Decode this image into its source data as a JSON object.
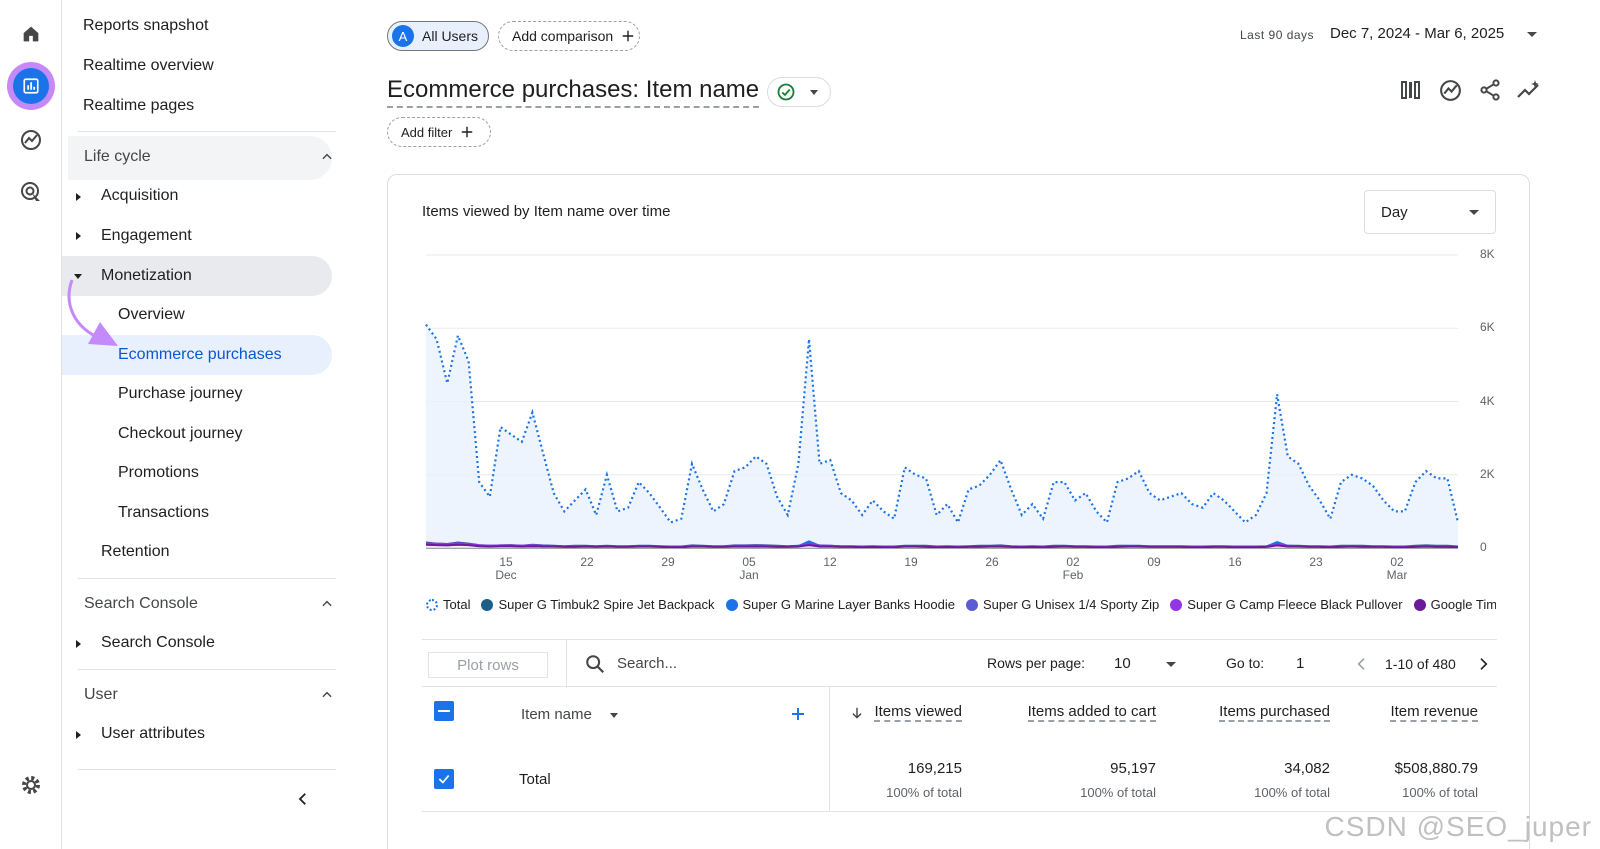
{
  "rail": {
    "icons": [
      "home-icon",
      "reports-icon",
      "explore-icon",
      "advertising-icon",
      "settings-icon"
    ]
  },
  "nav": {
    "top_items": [
      "Reports snapshot",
      "Realtime overview",
      "Realtime pages"
    ],
    "lifecycle": {
      "header": "Life cycle",
      "items": [
        "Acquisition",
        "Engagement",
        "Monetization"
      ],
      "monetization_children": [
        "Overview",
        "Ecommerce purchases",
        "Purchase journey",
        "Checkout journey",
        "Promotions",
        "Transactions"
      ],
      "retention": "Retention"
    },
    "search_console": {
      "header": "Search Console",
      "item": "Search Console"
    },
    "user": {
      "header": "User",
      "item": "User attributes"
    }
  },
  "header": {
    "segment_avatar": "A",
    "segment_label": "All Users",
    "add_comparison": "Add comparison",
    "date_range_label": "Last 90 days",
    "date_range": "Dec 7, 2024 - Mar 6, 2025",
    "title": "Ecommerce purchases: Item name",
    "add_filter": "Add filter"
  },
  "chart_card": {
    "title": "Items viewed by Item name over time",
    "granularity": "Day"
  },
  "chart_data": {
    "type": "line",
    "y_ticks": [
      "8K",
      "6K",
      "4K",
      "2K",
      "0"
    ],
    "ylim": [
      0,
      8000
    ],
    "x_ticks": [
      {
        "day": "15",
        "month": "Dec"
      },
      {
        "day": "22",
        "month": ""
      },
      {
        "day": "29",
        "month": ""
      },
      {
        "day": "05",
        "month": "Jan"
      },
      {
        "day": "12",
        "month": ""
      },
      {
        "day": "19",
        "month": ""
      },
      {
        "day": "26",
        "month": ""
      },
      {
        "day": "02",
        "month": "Feb"
      },
      {
        "day": "09",
        "month": ""
      },
      {
        "day": "16",
        "month": ""
      },
      {
        "day": "23",
        "month": ""
      },
      {
        "day": "02",
        "month": "Mar"
      }
    ],
    "series": [
      {
        "name": "Total",
        "color": "#1a73e8",
        "style": "dotted-area",
        "values": [
          6100,
          5700,
          4500,
          5800,
          5100,
          1800,
          1400,
          3300,
          3100,
          2900,
          3700,
          2600,
          1500,
          1000,
          1300,
          1600,
          900,
          2000,
          1000,
          1100,
          1800,
          1500,
          1100,
          700,
          800,
          2300,
          1600,
          1000,
          1200,
          2100,
          2200,
          2500,
          2300,
          1400,
          900,
          2300,
          5700,
          2300,
          2400,
          1500,
          1300,
          900,
          1300,
          1000,
          800,
          2200,
          2000,
          1900,
          900,
          1200,
          700,
          1600,
          1700,
          2000,
          2400,
          1600,
          900,
          1200,
          800,
          1800,
          1800,
          1300,
          1500,
          1000,
          700,
          1800,
          1900,
          2100,
          1500,
          1300,
          1400,
          1500,
          1200,
          1100,
          1500,
          1300,
          1000,
          700,
          900,
          1500,
          4200,
          2500,
          2300,
          1700,
          1300,
          800,
          1800,
          2000,
          1900,
          1700,
          1300,
          1000,
          1000,
          1800,
          2100,
          1900,
          1900,
          700
        ]
      },
      {
        "name": "Super G Timbuk2 Spire Jet Backpack",
        "color": "#1b5e8a",
        "values": [
          150,
          120,
          110,
          150,
          120,
          80,
          60,
          70,
          80,
          60,
          90,
          70,
          60,
          50,
          60,
          60,
          50,
          60,
          50,
          50,
          60,
          60,
          50,
          40,
          40,
          70,
          60,
          50,
          50,
          70,
          70,
          80,
          70,
          60,
          50,
          60,
          130,
          70,
          60,
          50,
          50,
          40,
          50,
          40,
          40,
          60,
          60,
          60,
          40,
          50,
          40,
          50,
          60,
          60,
          70,
          50,
          40,
          50,
          40,
          60,
          60,
          50,
          50,
          40,
          40,
          60,
          60,
          60,
          50,
          50,
          50,
          50,
          40,
          40,
          50,
          50,
          40,
          40,
          40,
          50,
          110,
          60,
          60,
          50,
          50,
          40,
          60,
          60,
          60,
          50,
          50,
          40,
          40,
          60,
          70,
          60,
          60,
          40
        ]
      },
      {
        "name": "Super G Marine Layer Banks Hoodie",
        "color": "#1a73e8",
        "values": [
          100,
          90,
          80,
          110,
          90,
          60,
          50,
          60,
          60,
          50,
          70,
          50,
          40,
          40,
          40,
          50,
          40,
          50,
          40,
          40,
          50,
          40,
          40,
          30,
          30,
          50,
          40,
          40,
          40,
          50,
          60,
          60,
          50,
          40,
          40,
          50,
          180,
          60,
          50,
          40,
          40,
          30,
          40,
          30,
          30,
          50,
          40,
          40,
          30,
          40,
          30,
          40,
          40,
          50,
          50,
          40,
          30,
          40,
          30,
          40,
          40,
          40,
          40,
          30,
          30,
          40,
          40,
          50,
          40,
          40,
          40,
          40,
          30,
          30,
          40,
          40,
          30,
          30,
          30,
          40,
          160,
          60,
          50,
          40,
          40,
          30,
          50,
          50,
          40,
          40,
          40,
          30,
          30,
          40,
          50,
          40,
          40,
          30
        ]
      },
      {
        "name": "Super G Unisex 1/4 Sporty Zip",
        "color": "#5b5bd6",
        "values": [
          120,
          110,
          100,
          120,
          110,
          70,
          60,
          60,
          70,
          50,
          70,
          60,
          50,
          40,
          50,
          50,
          40,
          50,
          40,
          40,
          50,
          50,
          40,
          30,
          30,
          50,
          50,
          40,
          40,
          50,
          50,
          60,
          50,
          50,
          40,
          50,
          110,
          50,
          50,
          40,
          40,
          30,
          40,
          30,
          30,
          50,
          50,
          40,
          30,
          40,
          30,
          40,
          40,
          50,
          50,
          40,
          30,
          40,
          30,
          40,
          50,
          40,
          40,
          30,
          30,
          40,
          50,
          50,
          40,
          40,
          40,
          40,
          30,
          30,
          40,
          40,
          30,
          30,
          30,
          40,
          90,
          50,
          50,
          40,
          40,
          30,
          40,
          50,
          40,
          40,
          40,
          30,
          30,
          40,
          50,
          40,
          40,
          30
        ]
      },
      {
        "name": "Super G Camp Fleece Black Pullover",
        "color": "#9334e6",
        "values": [
          130,
          120,
          110,
          130,
          110,
          70,
          60,
          70,
          70,
          60,
          80,
          60,
          50,
          40,
          50,
          50,
          40,
          50,
          40,
          40,
          50,
          50,
          40,
          30,
          30,
          60,
          50,
          40,
          40,
          60,
          60,
          60,
          60,
          50,
          40,
          50,
          120,
          60,
          60,
          40,
          40,
          30,
          40,
          30,
          30,
          50,
          50,
          50,
          30,
          40,
          30,
          40,
          50,
          50,
          60,
          40,
          30,
          40,
          30,
          50,
          50,
          40,
          40,
          30,
          30,
          50,
          50,
          50,
          40,
          40,
          40,
          40,
          30,
          30,
          40,
          40,
          30,
          30,
          30,
          40,
          100,
          60,
          50,
          40,
          40,
          30,
          50,
          50,
          50,
          40,
          40,
          30,
          30,
          50,
          50,
          50,
          50,
          30
        ]
      },
      {
        "name": "Google Timb",
        "color": "#6a1b9a",
        "values": [
          90,
          80,
          70,
          90,
          80,
          50,
          40,
          50,
          50,
          40,
          50,
          40,
          40,
          30,
          30,
          40,
          30,
          40,
          30,
          30,
          40,
          40,
          30,
          20,
          20,
          40,
          40,
          30,
          30,
          40,
          40,
          40,
          40,
          30,
          30,
          40,
          80,
          40,
          40,
          30,
          30,
          20,
          30,
          20,
          20,
          40,
          40,
          30,
          20,
          30,
          20,
          30,
          30,
          40,
          40,
          30,
          20,
          30,
          20,
          30,
          40,
          30,
          30,
          20,
          20,
          30,
          40,
          40,
          30,
          30,
          30,
          30,
          20,
          20,
          30,
          30,
          20,
          20,
          20,
          30,
          70,
          40,
          40,
          30,
          30,
          20,
          30,
          40,
          30,
          30,
          30,
          20,
          20,
          30,
          40,
          30,
          30,
          20
        ]
      }
    ]
  },
  "table": {
    "plot_rows": "Plot rows",
    "search_placeholder": "Search...",
    "rows_per_page_label": "Rows per page:",
    "rows_per_page": "10",
    "goto_label": "Go to:",
    "goto_value": "1",
    "pagination": "1-10 of 480",
    "dimension_header": "Item name",
    "columns": [
      "Items viewed",
      "Items added to cart",
      "Items purchased",
      "Item revenue"
    ],
    "total_label": "Total",
    "totals": [
      "169,215",
      "95,197",
      "34,082",
      "$508,880.79"
    ],
    "total_pcts": [
      "100% of total",
      "100% of total",
      "100% of total",
      "100% of total"
    ]
  },
  "watermark": "CSDN @SEO_juper"
}
